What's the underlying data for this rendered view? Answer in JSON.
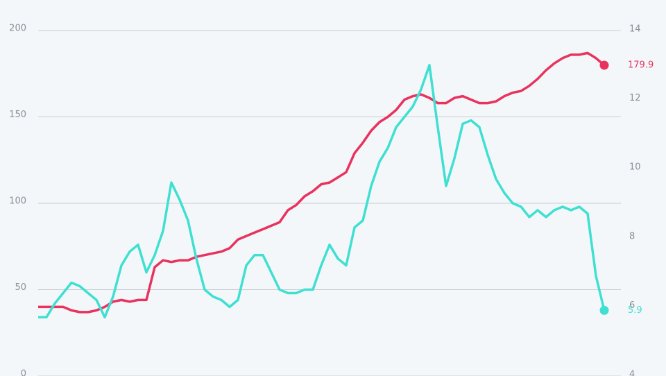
{
  "chart_data": {
    "type": "line",
    "categories": [
      null,
      null,
      null,
      null,
      null,
      null,
      null,
      null,
      null,
      null,
      null,
      null,
      null,
      null,
      null,
      null,
      null,
      null,
      null,
      null,
      null,
      null,
      null,
      null,
      null,
      null,
      null,
      null,
      null,
      null,
      null,
      null,
      null,
      null,
      null,
      null,
      null,
      null,
      null,
      null,
      null,
      null,
      null,
      null,
      null,
      null,
      null,
      null,
      null,
      null,
      null,
      null,
      null,
      null,
      null,
      null,
      null,
      null,
      null,
      null,
      null,
      null,
      null,
      null,
      null,
      null,
      null,
      null,
      null
    ],
    "ylim": [
      0,
      200
    ],
    "yticks": [
      0,
      50,
      100,
      150,
      200
    ],
    "y2lim": [
      4,
      14
    ],
    "y2ticks": [
      4,
      6,
      8,
      10,
      12,
      14
    ],
    "grid": true,
    "series": [
      {
        "name": null,
        "color": "#e8335e",
        "axis": "y",
        "values": [
          40,
          40,
          40,
          40,
          38,
          37,
          37,
          38,
          40,
          43,
          44,
          43,
          44,
          44,
          63,
          67,
          66,
          67,
          67,
          69,
          70,
          71,
          72,
          74,
          79,
          81,
          83,
          85,
          87,
          89,
          96,
          99,
          104,
          107,
          111,
          112,
          115,
          118,
          129,
          135,
          142,
          147,
          150,
          154,
          160,
          162,
          163,
          161,
          158,
          158,
          161,
          162,
          160,
          158,
          158,
          159,
          162,
          164,
          165,
          168,
          172,
          177,
          181,
          184,
          186,
          186,
          187,
          184,
          179.9
        ]
      },
      {
        "name": null,
        "color": "#3fe0d2",
        "axis": "y2",
        "values": [
          5.7,
          5.7,
          6.1,
          6.4,
          6.7,
          6.6,
          6.4,
          6.2,
          5.7,
          6.3,
          7.2,
          7.6,
          7.8,
          7.0,
          7.5,
          8.2,
          9.6,
          9.1,
          8.5,
          7.4,
          6.5,
          6.3,
          6.2,
          6.0,
          6.2,
          7.2,
          7.5,
          7.5,
          7.0,
          6.5,
          6.4,
          6.4,
          6.5,
          6.5,
          7.2,
          7.8,
          7.4,
          7.2,
          8.3,
          8.5,
          9.5,
          10.2,
          10.6,
          11.2,
          11.5,
          11.8,
          12.3,
          13.0,
          11.2,
          9.5,
          10.3,
          11.3,
          11.4,
          11.2,
          10.4,
          9.7,
          9.3,
          9.0,
          8.9,
          8.6,
          8.8,
          8.6,
          8.8,
          8.9,
          8.8,
          8.9,
          8.7,
          6.9,
          5.9
        ]
      }
    ]
  }
}
